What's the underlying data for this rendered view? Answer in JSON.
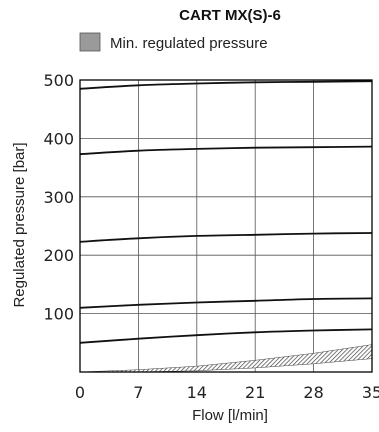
{
  "chart_data": {
    "type": "line",
    "title": "CART  MX(S)-6",
    "legend": {
      "entries": [
        {
          "label": "Min. regulated pressure",
          "color": "#9a9a9a"
        }
      ],
      "placement": "top"
    },
    "xlabel": "Flow [l/min]",
    "ylabel": "Regulated pressure [bar]",
    "xlim": [
      0,
      35
    ],
    "ylim": [
      0,
      500
    ],
    "xticks": [
      0,
      7,
      14,
      21,
      28,
      35
    ],
    "xtick_labels": [
      "0",
      "7",
      "14",
      "21",
      "28",
      "35"
    ],
    "yticks": [
      100,
      200,
      300,
      400,
      500
    ],
    "ytick_labels": [
      "100",
      "200",
      "300",
      "400",
      "500"
    ],
    "grid": true,
    "series": [
      {
        "x": [
          0,
          7,
          14,
          21,
          28,
          35
        ],
        "values": [
          50,
          57,
          63,
          68,
          71,
          73
        ]
      },
      {
        "x": [
          0,
          7,
          14,
          21,
          28,
          35
        ],
        "values": [
          110,
          115,
          119,
          122,
          125,
          126
        ]
      },
      {
        "x": [
          0,
          7,
          14,
          21,
          28,
          35
        ],
        "values": [
          223,
          229,
          233,
          235,
          237,
          238
        ]
      },
      {
        "x": [
          0,
          7,
          14,
          21,
          28,
          35
        ],
        "values": [
          373,
          379,
          382,
          384,
          385,
          386
        ]
      },
      {
        "x": [
          0,
          7,
          14,
          21,
          28,
          35
        ],
        "values": [
          485,
          491,
          494,
          496,
          497,
          498
        ]
      }
    ],
    "min_pressure_band": {
      "x": [
        0,
        7,
        14,
        21,
        28,
        35
      ],
      "lower": [
        0,
        0,
        2,
        7,
        14,
        23
      ],
      "upper": [
        0,
        4,
        10,
        20,
        32,
        47
      ]
    }
  }
}
